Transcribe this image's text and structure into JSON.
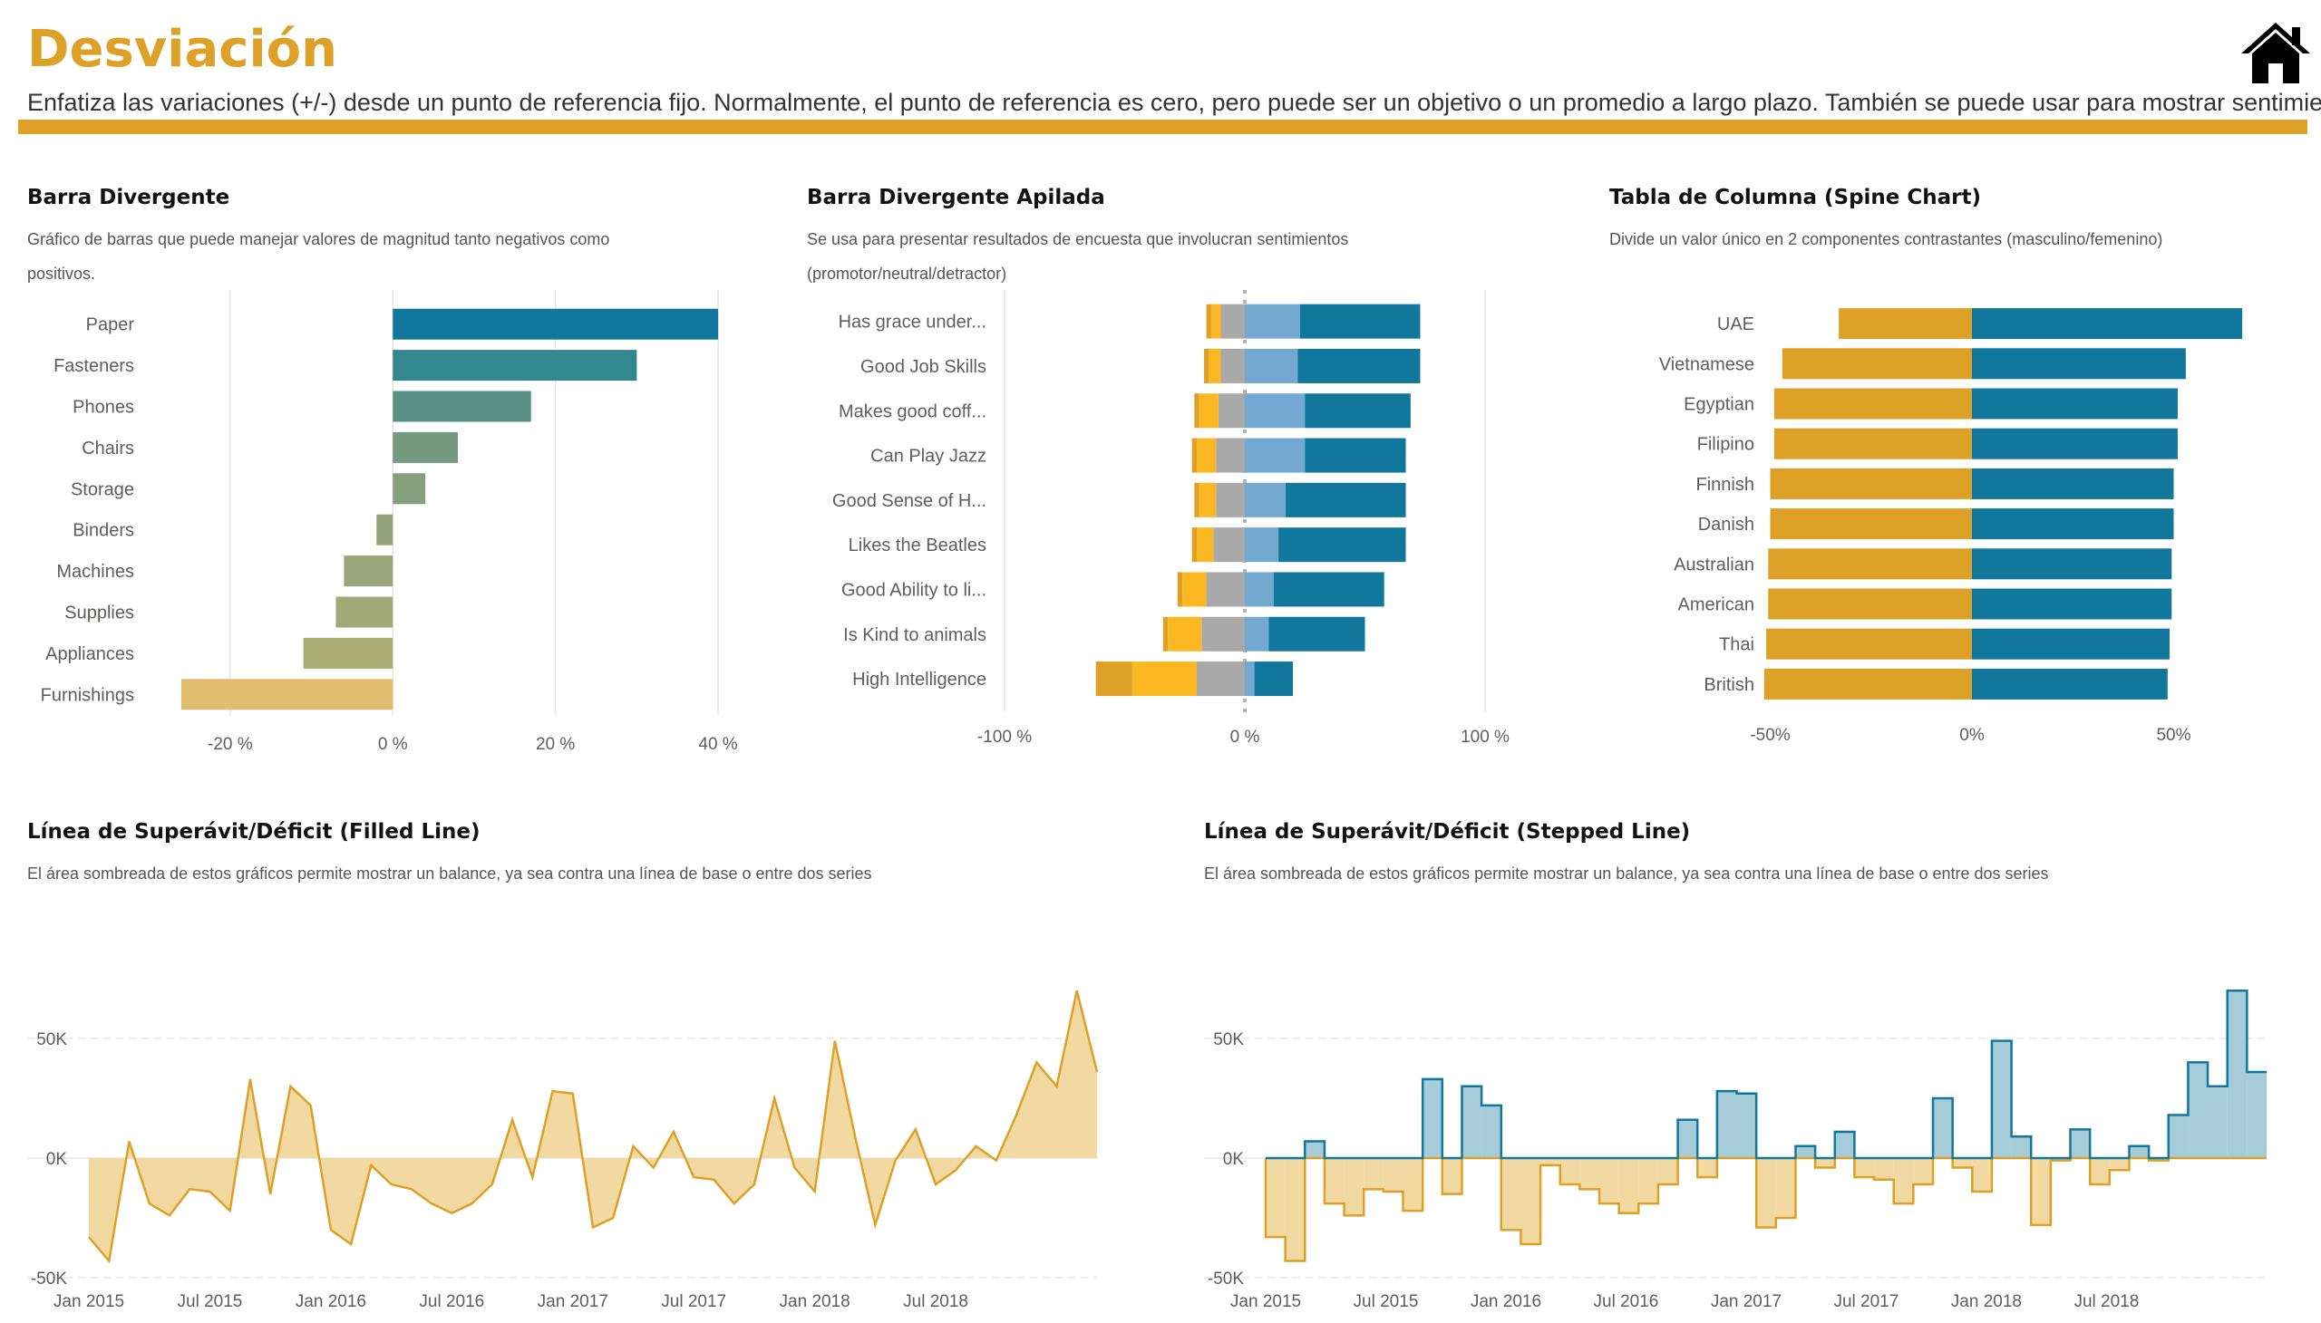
{
  "header": {
    "title": "Desviación",
    "subtitle": "Enfatiza las variaciones (+/-) desde un punto de referencia fijo. Normalmente, el punto de referencia es cero, pero puede ser un objetivo o un promedio a largo plazo. También se puede usar para mostrar sentimientos."
  },
  "colors": {
    "accent": "#DCA126",
    "teal": "#11779D",
    "light_blue": "#73A9D0",
    "gray": "#A9A9A9",
    "gold": "#DCA126",
    "amber": "#FCB823",
    "fill_gold": "#F2D9A2",
    "fill_blue": "#A6CCDA"
  },
  "home_icon": "home-icon",
  "panels": {
    "p1": {
      "title": "Barra Divergente",
      "desc1": "Gráfico de barras que puede manejar valores de magnitud tanto negativos como",
      "desc2": "positivos."
    },
    "p2": {
      "title": "Barra Divergente Apilada",
      "desc1": "Se usa para presentar resultados de encuesta que involucran sentimientos",
      "desc2": "(promotor/neutral/detractor)"
    },
    "p3": {
      "title": "Tabla de Columna (Spine Chart)",
      "desc1": "Divide un valor único en 2 componentes contrastantes (masculino/femenino)"
    },
    "p4": {
      "title": "Línea de Superávit/Déficit (Filled Line)",
      "desc1": "El área sombreada de estos gráficos permite mostrar un balance, ya sea contra una línea de base o entre dos series"
    },
    "p5": {
      "title": "Línea de Superávit/Déficit (Stepped Line)",
      "desc1": "El área sombreada de estos gráficos permite mostrar un balance, ya sea contra una línea de base o entre dos series"
    }
  },
  "chart_data": [
    {
      "type": "bar",
      "orientation": "horizontal",
      "categories": [
        "Paper",
        "Fasteners",
        "Phones",
        "Chairs",
        "Storage",
        "Binders",
        "Machines",
        "Supplies",
        "Appliances",
        "Furnishings"
      ],
      "values": [
        40,
        30,
        17,
        8,
        4,
        -2,
        -6,
        -7,
        -11,
        -26
      ],
      "colors": [
        "#11779D",
        "#33878F",
        "#5A9088",
        "#769A80",
        "#869F7C",
        "#93A37A",
        "#9AA67A",
        "#A1A977",
        "#ABAD75",
        "#E1BE70"
      ],
      "xlim": [
        -26,
        42
      ],
      "ticks": [
        -20,
        0,
        20,
        40
      ],
      "tick_labels": [
        "-20 %",
        "0 %",
        "20 %",
        "40 %"
      ]
    },
    {
      "type": "bar",
      "orientation": "horizontal",
      "stacked": "diverging",
      "categories": [
        "Has grace under...",
        "Good Job Skills",
        "Makes good coff...",
        "Can Play Jazz",
        "Good Sense of H...",
        "Likes the Beatles",
        "Good Ability to li...",
        "Is Kind to animals",
        "High Intelligence"
      ],
      "series": [
        {
          "color": "#DCA126",
          "values": [
            2,
            2,
            2,
            2,
            2,
            2,
            2,
            2,
            15
          ]
        },
        {
          "color": "#FCB823",
          "values": [
            4,
            5,
            8,
            8,
            7,
            7,
            10,
            14,
            27
          ]
        },
        {
          "color": "#A9A9A9",
          "values": [
            -10,
            -10,
            -11,
            -12,
            -12,
            -13,
            -16,
            -18,
            -20
          ]
        },
        {
          "color": "#73A9D0",
          "values": [
            23,
            22,
            25,
            25,
            17,
            14,
            12,
            10,
            4
          ]
        },
        {
          "color": "#11779D",
          "values": [
            50,
            51,
            44,
            42,
            50,
            53,
            46,
            40,
            16
          ]
        }
      ],
      "xlim": [
        -100,
        100
      ],
      "tick_labels": [
        "-100 %",
        "0 %",
        "100 %"
      ]
    },
    {
      "type": "bar",
      "orientation": "horizontal",
      "stacked": "spine",
      "categories": [
        "UAE",
        "Vietnamese",
        "Egyptian",
        "Filipino",
        "Finnish",
        "Danish",
        "Australian",
        "American",
        "Thai",
        "British"
      ],
      "series": [
        {
          "color": "#DCA126",
          "values": [
            -33,
            -47,
            -49,
            -49,
            -50,
            -50,
            -50.5,
            -50.5,
            -51,
            -51.5
          ]
        },
        {
          "color": "#11779D",
          "values": [
            67,
            53,
            51,
            51,
            50,
            50,
            49.5,
            49.5,
            49,
            48.5
          ]
        }
      ],
      "xlim": [
        -60,
        70
      ],
      "tick_labels": [
        "-50%",
        "0%",
        "50%"
      ]
    },
    {
      "type": "area",
      "ylim": [
        -50000,
        75000
      ],
      "y_ticks": [
        -50000,
        0,
        50000
      ],
      "y_tick_labels": [
        "-50K",
        "0K",
        "50K"
      ],
      "x_tick_labels": [
        "Jan 2015",
        "Jul 2015",
        "Jan 2016",
        "Jul 2016",
        "Jan 2017",
        "Jul 2017",
        "Jan 2018",
        "Jul 2018"
      ],
      "x_tick_index": [
        0,
        6,
        12,
        18,
        24,
        30,
        36,
        42
      ],
      "values": [
        -33000,
        -43000,
        7000,
        -19000,
        -24000,
        -13000,
        -14000,
        -22000,
        33000,
        -15000,
        30000,
        22000,
        -30000,
        -36000,
        -3000,
        -11000,
        -13000,
        -19000,
        -23000,
        -19000,
        -11000,
        16000,
        -8000,
        28000,
        27000,
        -29000,
        -25000,
        5000,
        -4000,
        11000,
        -8000,
        -9000,
        -19000,
        -11000,
        25000,
        -4000,
        -14000,
        49000,
        9000,
        -28000,
        -1000,
        12000,
        -11000,
        -5000,
        5000,
        -1000,
        18000,
        40000,
        30000,
        70000,
        36000
      ],
      "fill_color": "#F2D9A2",
      "line_color": "#DCA126"
    },
    {
      "type": "area",
      "step": true,
      "ylim": [
        -50000,
        75000
      ],
      "y_ticks": [
        -50000,
        0,
        50000
      ],
      "y_tick_labels": [
        "-50K",
        "0K",
        "50K"
      ],
      "x_tick_labels": [
        "Jan 2015",
        "Jul 2015",
        "Jan 2016",
        "Jul 2016",
        "Jan 2017",
        "Jul 2017",
        "Jan 2018",
        "Jul 2018"
      ],
      "x_tick_index": [
        0,
        6,
        12,
        18,
        24,
        30,
        36,
        42
      ],
      "values": [
        -33000,
        -43000,
        7000,
        -19000,
        -24000,
        -13000,
        -14000,
        -22000,
        33000,
        -15000,
        30000,
        22000,
        -30000,
        -36000,
        -3000,
        -11000,
        -13000,
        -19000,
        -23000,
        -19000,
        -11000,
        16000,
        -8000,
        28000,
        27000,
        -29000,
        -25000,
        5000,
        -4000,
        11000,
        -8000,
        -9000,
        -19000,
        -11000,
        25000,
        -4000,
        -14000,
        49000,
        9000,
        -28000,
        -1000,
        12000,
        -11000,
        -5000,
        5000,
        -1000,
        18000,
        40000,
        30000,
        70000,
        36000
      ],
      "pos_fill": "#A6CCDA",
      "pos_line": "#11779D",
      "neg_fill": "#F2D9A2",
      "neg_line": "#DCA126"
    }
  ]
}
